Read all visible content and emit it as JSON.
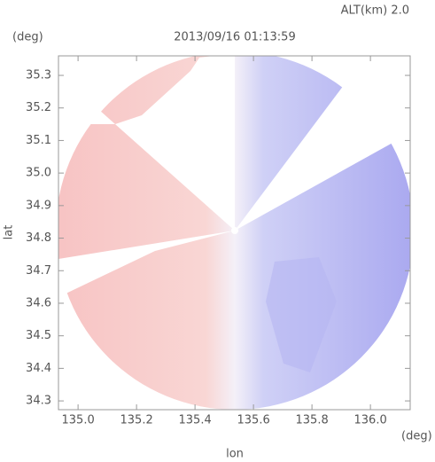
{
  "chart_data": {
    "type": "radar",
    "title": "2013/09/16 01:13:59",
    "annotation": "ALT(km) 2.0",
    "xlabel": "lon",
    "ylabel": "lat",
    "xunit": "(deg)",
    "yunit": "(deg)",
    "xlim": [
      134.933,
      136.136
    ],
    "ylim": [
      34.273,
      35.36
    ],
    "xticks": [
      {
        "value": 135,
        "label": "135.0"
      },
      135.2,
      135.4,
      135.6,
      135.8,
      {
        "value": 136,
        "label": "136.0"
      }
    ],
    "yticks": [
      34.3,
      34.4,
      34.5,
      34.6,
      34.7,
      34.8,
      34.9,
      {
        "value": 35,
        "label": "35.0"
      },
      35.1,
      35.2,
      35.3
    ]
  }
}
